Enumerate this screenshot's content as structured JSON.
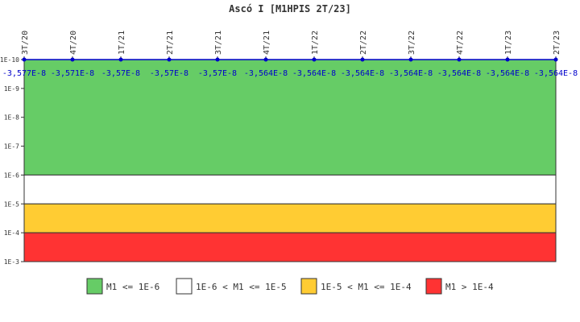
{
  "chart_data": {
    "type": "line",
    "title": "Ascó I [M1HPIS 2T/23]",
    "xlabel": "",
    "ylabel": "",
    "y_scale": "log",
    "y_inverted": true,
    "y_ticks": [
      "1E-10",
      "1E-9",
      "1E-8",
      "1E-7",
      "1E-6",
      "1E-5",
      "1E-4",
      "1E-3"
    ],
    "y_tick_exponents": [
      -10,
      -9,
      -8,
      -7,
      -6,
      -5,
      -4,
      -3
    ],
    "ylim_exponent": [
      -10,
      -3
    ],
    "categories": [
      "3T/20",
      "4T/20",
      "1T/21",
      "2T/21",
      "3T/21",
      "4T/21",
      "1T/22",
      "2T/22",
      "3T/22",
      "4T/22",
      "1T/23",
      "2T/23"
    ],
    "series": [
      {
        "values": [
          -3.577e-08,
          -3.571e-08,
          -3.57e-08,
          -3.57e-08,
          -3.57e-08,
          -3.564e-08,
          -3.564e-08,
          -3.564e-08,
          -3.564e-08,
          -3.564e-08,
          -3.564e-08,
          -3.564e-08
        ],
        "labels": [
          "-3,577E-8",
          "-3,571E-8",
          "-3,57E-8",
          "-3,57E-8",
          "-3,57E-8",
          "-3,564E-8",
          "-3,564E-8",
          "-3,564E-8",
          "-3,564E-8",
          "-3,564E-8",
          "-3,564E-8",
          "-3,564E-8"
        ],
        "color": "#0000cc"
      }
    ],
    "bands": [
      {
        "from_exp": -10,
        "to_exp": -6,
        "color": "#66cc66",
        "label": "M1 <= 1E-6"
      },
      {
        "from_exp": -6,
        "to_exp": -5,
        "color": "#ffffff",
        "label": "1E-6 < M1 <= 1E-5"
      },
      {
        "from_exp": -5,
        "to_exp": -4,
        "color": "#ffcc33",
        "label": "1E-5 < M1 <= 1E-4"
      },
      {
        "from_exp": -4,
        "to_exp": -3,
        "color": "#ff3333",
        "label": "M1 > 1E-4"
      }
    ],
    "grid": false,
    "legend_position": "bottom"
  }
}
